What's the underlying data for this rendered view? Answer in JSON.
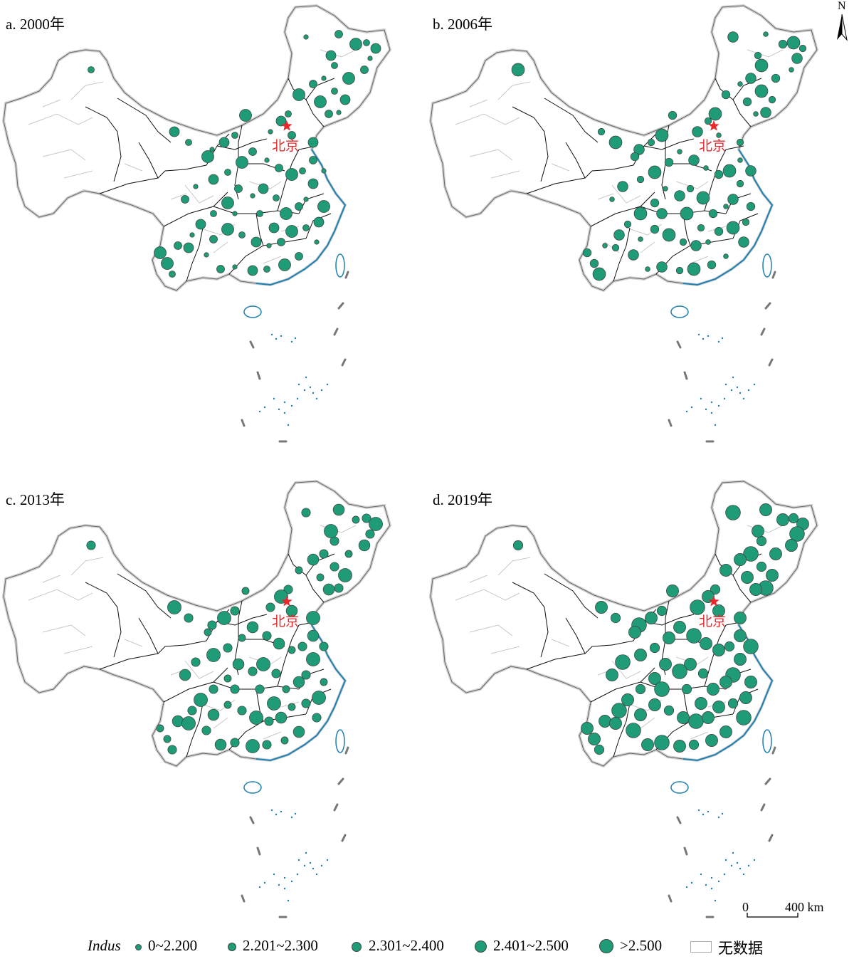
{
  "panels": [
    {
      "title": "a. 2000年",
      "year": 2000
    },
    {
      "title": "b. 2006年",
      "year": 2006
    },
    {
      "title": "c. 2013年",
      "year": 2013
    },
    {
      "title": "d. 2019年",
      "year": 2019
    }
  ],
  "capital_label": "北京",
  "north_label": "N",
  "scale": {
    "zero": "0",
    "max": "400 km"
  },
  "legend": {
    "title": "Indus",
    "classes": [
      {
        "label": "0~2.200"
      },
      {
        "label": "2.201~2.300"
      },
      {
        "label": "2.301~2.400"
      },
      {
        "label": "2.401~2.500"
      },
      {
        "label": ">2.500"
      }
    ],
    "no_data": "无数据"
  },
  "colors": {
    "symbol_fill": "#1f9b77",
    "capital_marker": "#e8282b",
    "coastline": "#1f7fb0",
    "province_border": "#111111",
    "city_border": "#c8c8c8",
    "national_border": "#9a9a9a"
  }
}
